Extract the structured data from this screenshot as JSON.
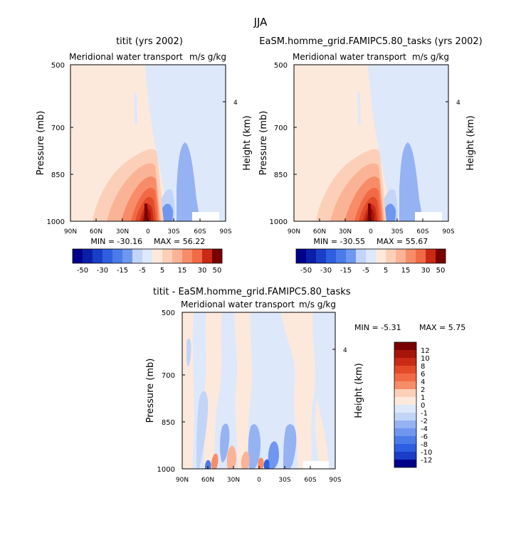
{
  "figure_title": "JJA",
  "colors": {
    "neg": [
      "#00008b",
      "#0a1fa8",
      "#1a3ec8",
      "#2e5fe0",
      "#4a7be8",
      "#6f97ef",
      "#95b2f3",
      "#c2d5f8",
      "#dde8fb"
    ],
    "pos": [
      "#fde9dc",
      "#fcd0b8",
      "#fbb396",
      "#f88c68",
      "#f26a45",
      "#e34a27",
      "#c92a16",
      "#a5150a",
      "#7a0000"
    ],
    "neutral": "#f7f7f7"
  },
  "chart_data": [
    {
      "type": "contour",
      "title": "titit (yrs 2002)",
      "subtitle_left": "Meridional water transport",
      "subtitle_right": "m/s g/kg",
      "ylabel": "Pressure (mb)",
      "y2label": "Height (km)",
      "y2ticks": [
        "4"
      ],
      "y2tick_pressure": 615,
      "yticks": [
        500,
        700,
        850,
        1000
      ],
      "xticks": [
        "90N",
        "60N",
        "30N",
        "0",
        "30S",
        "60S",
        "90S"
      ],
      "ylim": [
        500,
        1000
      ],
      "xlim": [
        90,
        -90
      ],
      "min_label": "MIN = -30.16",
      "max_label": "MAX =  56.22",
      "min": -30.16,
      "max": 56.22,
      "levels": [
        "-50",
        "-30",
        "-15",
        "-5",
        "5",
        "15",
        "30",
        "50"
      ]
    },
    {
      "type": "contour",
      "title": "EaSM.homme_grid.FAMIPC5.80_tasks (yrs 2002)",
      "subtitle_left": "Meridional water transport",
      "subtitle_right": "m/s g/kg",
      "ylabel": "Pressure (mb)",
      "y2label": "Height (km)",
      "y2ticks": [
        "4"
      ],
      "y2tick_pressure": 615,
      "yticks": [
        500,
        700,
        850,
        1000
      ],
      "xticks": [
        "90N",
        "60N",
        "30N",
        "0",
        "30S",
        "60S",
        "90S"
      ],
      "ylim": [
        500,
        1000
      ],
      "xlim": [
        90,
        -90
      ],
      "min_label": "MIN = -30.55",
      "max_label": "MAX =  55.67",
      "min": -30.55,
      "max": 55.67,
      "levels": [
        "-50",
        "-30",
        "-15",
        "-5",
        "5",
        "15",
        "30",
        "50"
      ]
    },
    {
      "type": "contour",
      "title": "titit - EaSM.homme_grid.FAMIPC5.80_tasks",
      "subtitle_left": "Meridional water transport",
      "subtitle_right": "m/s g/kg",
      "ylabel": "Pressure (mb)",
      "y2label": "Height (km)",
      "y2ticks": [
        "4"
      ],
      "y2tick_pressure": 615,
      "yticks": [
        500,
        700,
        850,
        1000
      ],
      "xticks": [
        "90N",
        "60N",
        "30N",
        "0",
        "30S",
        "60S",
        "90S"
      ],
      "ylim": [
        500,
        1000
      ],
      "xlim": [
        90,
        -90
      ],
      "min_label": "MIN =  -5.31",
      "max_label": "MAX =   5.75",
      "min": -5.31,
      "max": 5.75,
      "levels": [
        "12",
        "10",
        "8",
        "6",
        "4",
        "2",
        "1",
        "0",
        "-1",
        "-2",
        "-4",
        "-6",
        "-8",
        "-10",
        "-12"
      ]
    }
  ]
}
